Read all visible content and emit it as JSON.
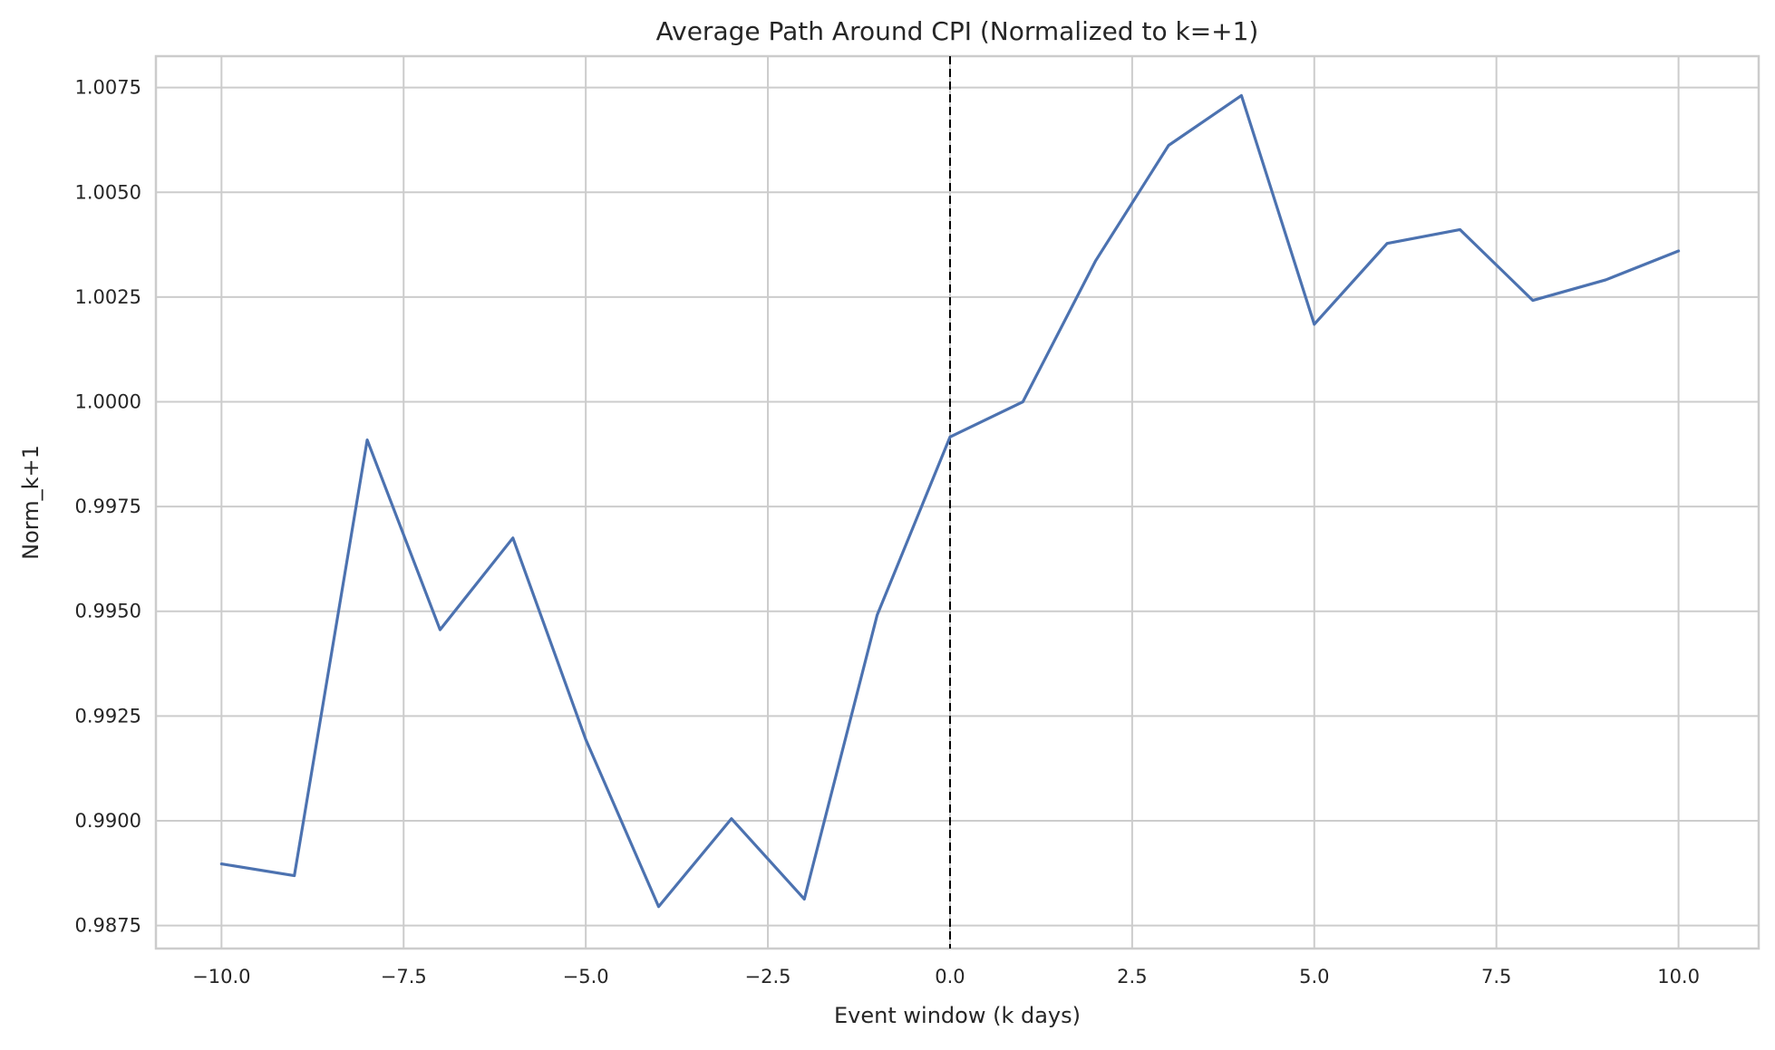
{
  "chart_data": {
    "type": "line",
    "title": "Average Path Around CPI (Normalized to k=+1)",
    "xlabel": "Event window (k days)",
    "ylabel": "Norm_k+1",
    "xlim": [
      -10.9,
      11.1
    ],
    "ylim": [
      0.98695,
      1.00825
    ],
    "x_ticks": [
      -10.0,
      -7.5,
      -5.0,
      -2.5,
      0.0,
      2.5,
      5.0,
      7.5,
      10.0
    ],
    "x_tick_labels": [
      "−10.0",
      "−7.5",
      "−5.0",
      "−2.5",
      "0.0",
      "2.5",
      "5.0",
      "7.5",
      "10.0"
    ],
    "y_ticks": [
      0.9875,
      0.99,
      0.9925,
      0.995,
      0.9975,
      1.0,
      1.0025,
      1.005,
      1.0075
    ],
    "y_tick_labels": [
      "0.9875",
      "0.9900",
      "0.9925",
      "0.9950",
      "0.9975",
      "1.0000",
      "1.0025",
      "1.0050",
      "1.0075"
    ],
    "grid": true,
    "reference_line": {
      "x": 0,
      "style": "dashed",
      "color": "#000000"
    },
    "series": [
      {
        "color": "#4c72b0",
        "x": [
          -10,
          -9,
          -8,
          -7,
          -6,
          -5,
          -4,
          -3,
          -2,
          -1,
          0,
          1,
          2,
          3,
          4,
          5,
          6,
          7,
          8,
          9,
          10
        ],
        "y": [
          0.98897,
          0.98869,
          0.99909,
          0.99456,
          0.99675,
          0.99194,
          0.98795,
          0.99005,
          0.98813,
          0.99491,
          0.99916,
          1.0,
          1.00337,
          1.00612,
          1.00731,
          1.00185,
          1.00378,
          1.00411,
          1.00242,
          1.00291,
          1.0036
        ]
      }
    ]
  }
}
